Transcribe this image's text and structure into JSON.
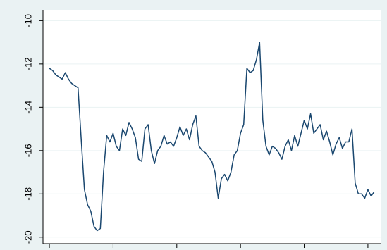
{
  "chart_data": {
    "type": "line",
    "x": [
      0,
      1,
      2,
      3,
      4,
      5,
      6,
      7,
      8,
      9,
      10,
      11,
      12,
      13,
      14,
      15,
      16,
      17,
      18,
      19,
      20,
      21,
      22,
      23,
      24,
      25,
      26,
      27,
      28,
      29,
      30,
      31,
      32,
      33,
      34,
      35,
      36,
      37,
      38,
      39,
      40,
      41,
      42,
      43,
      44,
      45,
      46,
      47,
      48,
      49,
      50,
      51,
      52,
      53,
      54,
      55,
      56,
      57,
      58,
      59,
      60,
      61,
      62,
      63,
      64,
      65,
      66,
      67,
      68,
      69,
      70,
      71,
      72,
      73,
      74,
      75,
      76,
      77,
      78,
      79,
      80,
      81,
      82,
      83,
      84,
      85,
      86,
      87,
      88,
      89,
      90,
      91,
      92,
      93,
      94,
      95,
      96,
      97,
      98,
      99,
      100,
      101,
      102
    ],
    "series": [
      {
        "color": "#1a476f",
        "values": [
          -12.2,
          -12.3,
          -12.5,
          -12.6,
          -12.7,
          -12.4,
          -12.7,
          -12.9,
          -13.0,
          -13.1,
          -15.5,
          -17.8,
          -18.5,
          -18.8,
          -19.5,
          -19.7,
          -19.6,
          -17.0,
          -15.3,
          -15.6,
          -15.2,
          -15.8,
          -16.0,
          -15.0,
          -15.3,
          -14.7,
          -15.0,
          -15.4,
          -16.4,
          -16.5,
          -15.0,
          -14.8,
          -16.0,
          -16.6,
          -16.0,
          -15.8,
          -15.3,
          -15.7,
          -15.6,
          -15.8,
          -15.4,
          -14.9,
          -15.3,
          -15.0,
          -15.5,
          -14.8,
          -14.4,
          -15.8,
          -16.0,
          -16.1,
          -16.3,
          -16.5,
          -17.0,
          -18.2,
          -17.3,
          -17.1,
          -17.4,
          -17.0,
          -16.2,
          -16.0,
          -15.2,
          -14.8,
          -12.2,
          -12.4,
          -12.3,
          -11.8,
          -11.0,
          -14.6,
          -15.8,
          -16.2,
          -15.8,
          -15.9,
          -16.1,
          -16.4,
          -15.8,
          -15.5,
          -16.0,
          -15.3,
          -15.8,
          -15.2,
          -14.6,
          -15.0,
          -14.3,
          -15.2,
          -15.0,
          -14.8,
          -15.5,
          -15.1,
          -15.6,
          -16.2,
          -15.7,
          -15.4,
          -15.9,
          -15.6,
          -15.6,
          -15.0,
          -17.5,
          -18.0,
          -18.0,
          -18.2,
          -17.8,
          -18.1,
          -17.9
        ]
      }
    ],
    "xlim": [
      -2,
      104
    ],
    "xticks": [
      0,
      20,
      40,
      60,
      80,
      100
    ],
    "ylim": [
      -20.3,
      -9.5
    ],
    "yticks": [
      -20,
      -18,
      -16,
      -14,
      -12,
      -10
    ],
    "grid": true
  }
}
